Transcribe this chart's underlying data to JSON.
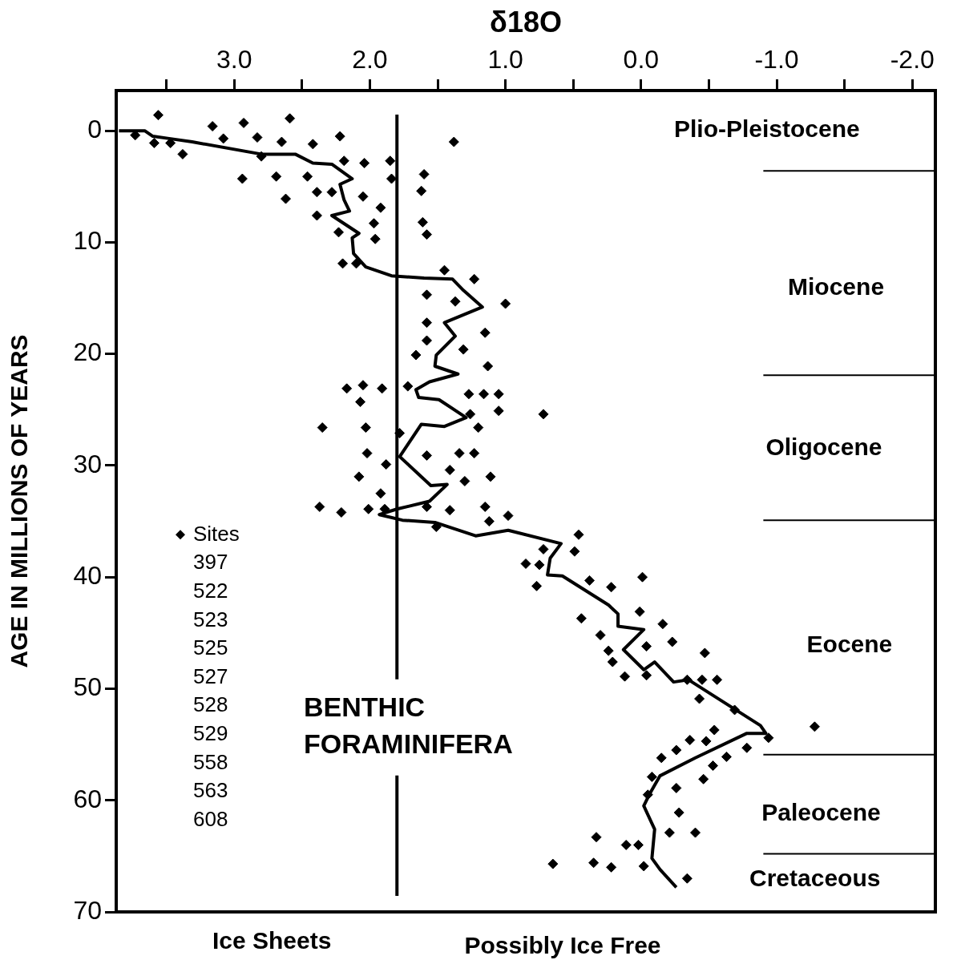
{
  "chart_data": {
    "type": "scatter",
    "xlabel": "δ18O",
    "ylabel": "AGE IN MILLIONS OF YEARS",
    "xlim": [
      3.87,
      -2.17
    ],
    "ylim": [
      70,
      -3.6
    ],
    "xticks": [
      {
        "value": 3.5,
        "label": null
      },
      {
        "value": 3,
        "label": "3.0"
      },
      {
        "value": 2.5,
        "label": null
      },
      {
        "value": 2,
        "label": "2.0"
      },
      {
        "value": 1.5,
        "label": null
      },
      {
        "value": 1,
        "label": "1.0"
      },
      {
        "value": 0.5,
        "label": null
      },
      {
        "value": 0,
        "label": "0.0"
      },
      {
        "value": -0.5,
        "label": null
      },
      {
        "value": -1,
        "label": "-1.0"
      },
      {
        "value": -1.5,
        "label": null
      },
      {
        "value": -2,
        "label": "-2.0"
      }
    ],
    "yticks": [
      0,
      10,
      20,
      30,
      40,
      50,
      60,
      70
    ],
    "grid": false,
    "legend": "left",
    "series": [
      {
        "name": "Sites",
        "marker": "diamond",
        "color": "#000000",
        "x": [
          3.56,
          3.16,
          2.93,
          2.59,
          2.22,
          1.38,
          3.73,
          3.59,
          3.47,
          3.38,
          3.08,
          2.83,
          2.65,
          2.42,
          2.8,
          2.19,
          2.04,
          1.85,
          1.84,
          1.6,
          1.62,
          1.61,
          1.58,
          2.94,
          2.69,
          2.46,
          2.39,
          2.28,
          2.05,
          2.62,
          1.92,
          2.39,
          1.97,
          1.96,
          2.23,
          2.2,
          2.1,
          1.45,
          1.23,
          1.58,
          1.37,
          1.0,
          1.58,
          1.15,
          1.58,
          1.31,
          1.66,
          1.13,
          2.17,
          2.05,
          1.91,
          1.72,
          2.07,
          1.27,
          1.16,
          1.05,
          1.26,
          1.05,
          0.72,
          2.35,
          2.03,
          1.78,
          1.2,
          2.02,
          1.58,
          1.34,
          1.23,
          1.88,
          1.41,
          2.08,
          1.3,
          1.11,
          1.92,
          2.37,
          2.21,
          2.01,
          1.89,
          1.58,
          1.41,
          1.15,
          1.12,
          0.98,
          1.51,
          0.72,
          0.85,
          0.75,
          0.46,
          0.49,
          0.77,
          0.38,
          0.22,
          -0.01,
          0.44,
          0.01,
          -0.16,
          0.3,
          -0.23,
          -0.04,
          0.24,
          0.21,
          0.12,
          -0.04,
          -0.47,
          -0.34,
          -0.45,
          -0.56,
          -0.43,
          -0.69,
          -0.94,
          -1.28,
          -0.54,
          -0.36,
          -0.48,
          -0.26,
          -0.15,
          -0.78,
          -0.63,
          -0.53,
          -0.46,
          -0.08,
          -0.26,
          -0.05,
          -0.28,
          -0.21,
          -0.4,
          0.33,
          0.11,
          0.02,
          0.65,
          0.35,
          0.22,
          -0.02,
          -0.34
        ],
        "values": [
          -1.4,
          -0.4,
          -0.7,
          -1.1,
          0.5,
          1.0,
          0.4,
          1.1,
          1.1,
          2.1,
          0.7,
          0.6,
          1.0,
          1.2,
          2.3,
          2.7,
          2.9,
          2.7,
          4.3,
          3.9,
          5.4,
          8.2,
          9.3,
          4.3,
          4.1,
          4.1,
          5.5,
          5.5,
          5.9,
          6.1,
          6.9,
          7.6,
          8.3,
          9.7,
          9.1,
          11.9,
          11.9,
          12.5,
          13.3,
          14.7,
          15.3,
          15.5,
          17.2,
          18.1,
          18.8,
          19.6,
          20.1,
          21.1,
          23.1,
          22.8,
          23.1,
          22.9,
          24.3,
          23.6,
          23.6,
          23.6,
          25.4,
          25.1,
          25.4,
          26.6,
          26.6,
          27.1,
          26.6,
          28.9,
          29.1,
          28.9,
          28.9,
          29.9,
          30.4,
          31.0,
          31.4,
          31.0,
          32.5,
          33.7,
          34.2,
          33.9,
          33.9,
          33.7,
          34.0,
          33.7,
          35.0,
          34.5,
          35.5,
          37.5,
          38.8,
          38.9,
          36.2,
          37.7,
          40.8,
          40.3,
          40.9,
          40.0,
          43.7,
          43.1,
          44.2,
          45.2,
          45.8,
          46.2,
          46.6,
          47.6,
          48.9,
          48.8,
          46.8,
          49.2,
          49.2,
          49.2,
          50.9,
          51.9,
          54.4,
          53.4,
          53.7,
          54.6,
          54.7,
          55.5,
          56.2,
          55.3,
          56.1,
          56.9,
          58.1,
          57.9,
          58.9,
          59.5,
          61.1,
          62.9,
          62.9,
          63.3,
          64.0,
          64.0,
          65.7,
          65.6,
          66.0,
          65.9,
          67.0
        ]
      },
      {
        "type": "line",
        "color": "#000000",
        "x": [
          3.85,
          3.66,
          3.6,
          3.48,
          3.31,
          2.8,
          2.55,
          2.42,
          2.28,
          2.13,
          2.22,
          2.19,
          2.15,
          2.28,
          2.08,
          2.13,
          2.12,
          2.03,
          1.84,
          1.6,
          1.39,
          1.31,
          1.17,
          1.45,
          1.37,
          1.51,
          1.52,
          1.35,
          1.56,
          1.66,
          1.64,
          1.49,
          1.29,
          1.45,
          1.62,
          1.78,
          1.55,
          1.43,
          1.56,
          1.8,
          1.93,
          1.76,
          1.52,
          1.22,
          0.98,
          0.59,
          0.67,
          0.69,
          0.58,
          0.24,
          0.17,
          0.17,
          -0.02,
          0.13,
          -0.02,
          -0.1,
          -0.24,
          -0.35,
          -0.88,
          -0.92,
          -0.78,
          -0.4,
          -0.14,
          -0.06,
          -0.02,
          -0.1,
          -0.08,
          -0.14,
          -0.26
        ],
        "values": [
          0,
          0,
          0.5,
          0.7,
          1.0,
          2.1,
          2.1,
          2.9,
          3.0,
          4.3,
          4.8,
          6.2,
          7.2,
          7.6,
          9.2,
          9.6,
          11.0,
          12.2,
          13.0,
          13.2,
          13.3,
          14.3,
          15.8,
          17.2,
          18.4,
          20.1,
          21.1,
          21.8,
          22.5,
          23.2,
          23.9,
          24.1,
          25.7,
          26.5,
          26.3,
          29.2,
          31.8,
          31.7,
          33.2,
          33.9,
          34.4,
          34.9,
          35.1,
          36.3,
          35.8,
          37.0,
          38.3,
          39.8,
          39.9,
          42.5,
          43.3,
          44.4,
          44.7,
          46.5,
          48.3,
          47.6,
          49.4,
          49.2,
          53.3,
          54.0,
          54.0,
          56.2,
          57.8,
          59.5,
          60.5,
          62.6,
          65.2,
          66.2,
          67.8
        ]
      }
    ],
    "ref_lines": [
      {
        "axis": "x",
        "value": 1.8,
        "label": "BENTHIC FORAMINIFERA"
      },
      {
        "axis": "y",
        "value": 3.6
      },
      {
        "axis": "y",
        "value": 21.9
      },
      {
        "axis": "y",
        "value": 34.9
      },
      {
        "axis": "y",
        "value": 55.9
      },
      {
        "axis": "y",
        "value": 64.8
      }
    ],
    "annotations": [
      "Plio-Pleistocene",
      "Miocene",
      "Oligocene",
      "Eocene",
      "Paleocene",
      "Cretaceous",
      "397",
      "522",
      "523",
      "525",
      "527",
      "528",
      "529",
      "558",
      "563",
      "608",
      "Ice Sheets",
      "Possibly Ice Free"
    ]
  }
}
